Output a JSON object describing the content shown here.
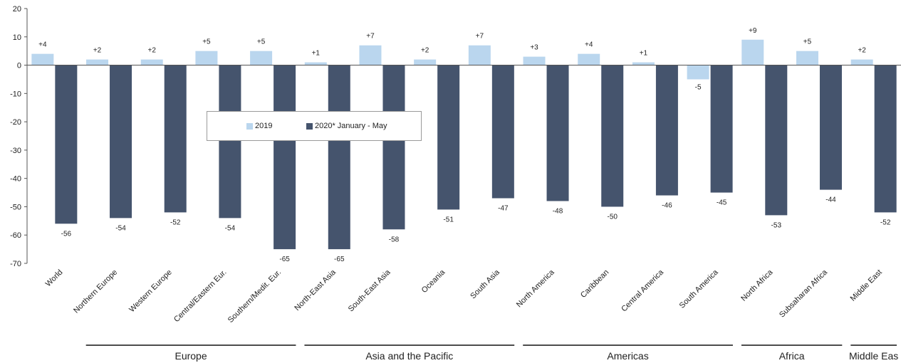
{
  "colors": {
    "s2019": "#bad6ee",
    "s2020": "#45546d",
    "axis": "#555555"
  },
  "legend": {
    "item1": "2019",
    "item2": "2020* January - May"
  },
  "chart_data": {
    "type": "bar",
    "ylim": [
      -70,
      20
    ],
    "yticks": [
      20,
      10,
      0,
      -10,
      -20,
      -30,
      -40,
      -50,
      -60,
      -70
    ],
    "categories": [
      "World",
      "Northern Europe",
      "Western Europe",
      "Central/Eastern Eur.",
      "Southern/Medit. Eur.",
      "North-East Asia",
      "South-East Asia",
      "Oceania",
      "South Asia",
      "North America",
      "Caribbean",
      "Central America",
      "South America",
      "North Africa",
      "Subsaharan Africa",
      "Middle East"
    ],
    "series": [
      {
        "name": "2019",
        "values": [
          4,
          2,
          2,
          5,
          5,
          1,
          7,
          2,
          7,
          3,
          4,
          1,
          -5,
          9,
          5,
          2
        ],
        "labels": [
          "+4",
          "+2",
          "+2",
          "+5",
          "+5",
          "+1",
          "+7",
          "+2",
          "+7",
          "+3",
          "+4",
          "+1",
          "-5",
          "+9",
          "+5",
          "+2"
        ]
      },
      {
        "name": "2020* January - May",
        "values": [
          -56,
          -54,
          -52,
          -54,
          -65,
          -65,
          -58,
          -51,
          -47,
          -48,
          -50,
          -46,
          -45,
          -53,
          -44,
          -52
        ],
        "labels": [
          "-56",
          "-54",
          "-52",
          "-54",
          "-65",
          "-65",
          "-58",
          "-51",
          "-47",
          "-48",
          "-50",
          "-46",
          "-45",
          "-53",
          "-44",
          "-52"
        ]
      }
    ],
    "groups": [
      {
        "label": "Europe",
        "from": 1,
        "to": 4
      },
      {
        "label": "Asia and the Pacific",
        "from": 5,
        "to": 8
      },
      {
        "label": "Americas",
        "from": 9,
        "to": 12
      },
      {
        "label": "Africa",
        "from": 13,
        "to": 14
      },
      {
        "label": "Middle Eas",
        "from": 15,
        "to": 15
      }
    ]
  }
}
